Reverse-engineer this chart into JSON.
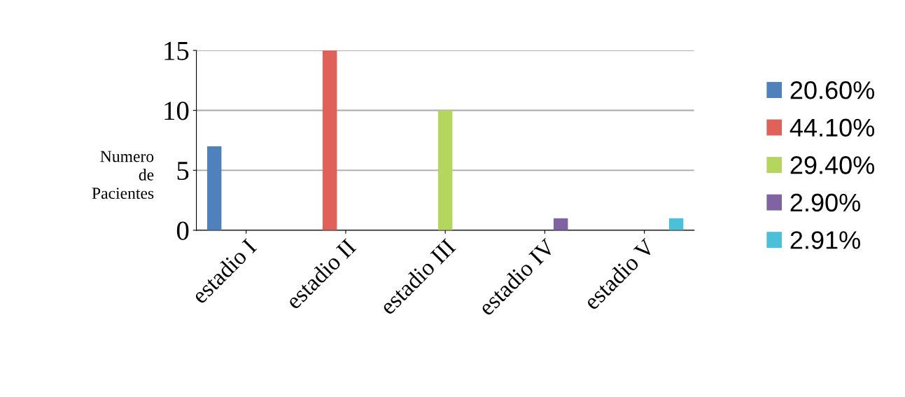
{
  "chart_data": {
    "type": "bar",
    "ylabel": "Numero de Pacientes",
    "categories": [
      "estadio I",
      "estadio II",
      "estadio III",
      "estadio IV",
      "estadio V"
    ],
    "series": [
      {
        "name": "20.60%",
        "color": "#4f81bd",
        "values": [
          7,
          null,
          null,
          null,
          null
        ]
      },
      {
        "name": "44.10%",
        "color": "#e0605a",
        "values": [
          null,
          15,
          null,
          null,
          null
        ]
      },
      {
        "name": "29.40%",
        "color": "#b5d65e",
        "values": [
          null,
          null,
          10,
          null,
          null
        ]
      },
      {
        "name": "2.90%",
        "color": "#8064a2",
        "values": [
          null,
          null,
          null,
          1,
          null
        ]
      },
      {
        "name": "2.91%",
        "color": "#4bc0d8",
        "values": [
          null,
          null,
          null,
          null,
          1
        ]
      }
    ],
    "ylim": [
      0,
      15
    ],
    "yticks": [
      0,
      5,
      10,
      15
    ],
    "grid": "y",
    "legend": "right"
  }
}
